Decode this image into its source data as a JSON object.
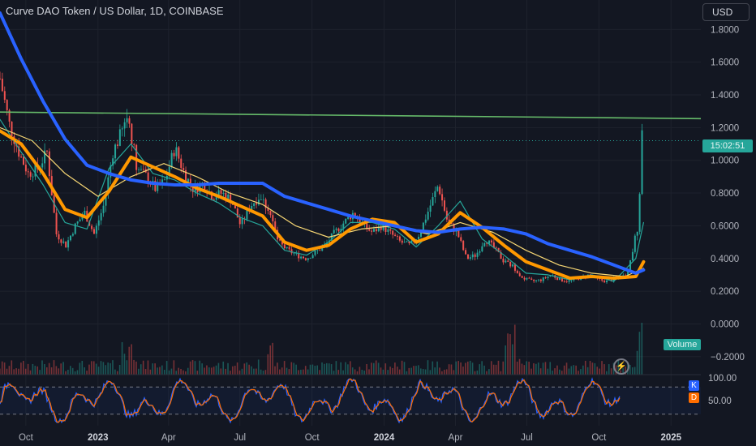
{
  "header": {
    "title": "Curve DAO Token / US Dollar, 1D, COINBASE",
    "currency": "USD"
  },
  "price_tag": "15:02:51",
  "volume_tag": "Volume",
  "indicator": {
    "k": "K",
    "d": "D"
  },
  "colors": {
    "background": "#131722",
    "ma_blue": "#2962ff",
    "ma_orange": "#ff9800",
    "ma_yellow": "#f7d774",
    "ma_teal": "#26a69a",
    "resistance": "#66bb6a",
    "candle_up": "#26a69a",
    "candle_down": "#ef5350",
    "stoch_k": "#2962ff",
    "stoch_d": "#ff6d00"
  },
  "chart_data": {
    "type": "line",
    "title": "Curve DAO Token / US Dollar, 1D, COINBASE",
    "xlabel": "",
    "ylabel": "",
    "x_tick_labels": [
      "Oct",
      "2023",
      "Apr",
      "Jul",
      "Oct",
      "2024",
      "Apr",
      "Jul",
      "Oct",
      "2025"
    ],
    "x_tick_dates": [
      "2022-10-01",
      "2023-01-01",
      "2023-04-01",
      "2023-07-01",
      "2023-10-01",
      "2024-01-01",
      "2024-04-01",
      "2024-07-01",
      "2024-10-01",
      "2025-01-01"
    ],
    "y_tick_labels": [
      "1.8000",
      "1.6000",
      "1.4000",
      "1.2000",
      "1.0000",
      "0.8000",
      "0.6000",
      "0.4000",
      "0.2000",
      "0.0000",
      "−0.2000"
    ],
    "y_ticks": [
      1.8,
      1.6,
      1.4,
      1.2,
      1.0,
      0.8,
      0.6,
      0.4,
      0.2,
      0.0,
      -0.2
    ],
    "ylim": [
      -0.31,
      1.98
    ],
    "xlim": [
      "2022-08-29",
      "2025-02-08"
    ],
    "grid": true,
    "legend": "none",
    "resistance_line": {
      "start": [
        "2022-08-29",
        1.295
      ],
      "end": [
        "2025-02-08",
        1.255
      ]
    },
    "series": [
      {
        "color": "#2962ff",
        "x": [
          "2022-08-29",
          "2022-09-25",
          "2022-10-23",
          "2022-11-20",
          "2022-12-18",
          "2023-01-15",
          "2023-02-12",
          "2023-03-12",
          "2023-04-09",
          "2023-05-07",
          "2023-06-04",
          "2023-07-02",
          "2023-07-30",
          "2023-08-27",
          "2023-09-24",
          "2023-10-22",
          "2023-11-19",
          "2023-12-17",
          "2024-01-14",
          "2024-02-11",
          "2024-03-10",
          "2024-04-07",
          "2024-05-05",
          "2024-06-02",
          "2024-06-30",
          "2024-07-28",
          "2024-08-25",
          "2024-09-22",
          "2024-10-20",
          "2024-11-17",
          "2024-11-27"
        ],
        "values": [
          1.9,
          1.62,
          1.36,
          1.13,
          0.97,
          0.92,
          0.88,
          0.86,
          0.85,
          0.85,
          0.86,
          0.86,
          0.86,
          0.78,
          0.74,
          0.7,
          0.66,
          0.63,
          0.6,
          0.57,
          0.56,
          0.58,
          0.59,
          0.58,
          0.55,
          0.49,
          0.45,
          0.41,
          0.36,
          0.31,
          0.33
        ]
      },
      {
        "color": "#ff9800",
        "x": [
          "2022-08-29",
          "2022-09-25",
          "2022-10-23",
          "2022-11-20",
          "2022-12-18",
          "2023-01-15",
          "2023-02-12",
          "2023-03-12",
          "2023-04-09",
          "2023-05-07",
          "2023-06-04",
          "2023-07-02",
          "2023-07-30",
          "2023-08-27",
          "2023-09-24",
          "2023-10-22",
          "2023-11-19",
          "2023-12-17",
          "2024-01-14",
          "2024-02-11",
          "2024-03-10",
          "2024-04-07",
          "2024-05-05",
          "2024-06-02",
          "2024-06-30",
          "2024-07-28",
          "2024-08-25",
          "2024-09-22",
          "2024-10-20",
          "2024-11-17",
          "2024-11-27"
        ],
        "values": [
          1.18,
          1.1,
          0.92,
          0.7,
          0.65,
          0.81,
          1.02,
          0.96,
          0.9,
          0.83,
          0.78,
          0.72,
          0.66,
          0.5,
          0.45,
          0.48,
          0.58,
          0.64,
          0.62,
          0.5,
          0.55,
          0.68,
          0.59,
          0.48,
          0.38,
          0.33,
          0.28,
          0.29,
          0.28,
          0.29,
          0.38
        ]
      },
      {
        "color": "#f7d774",
        "x": [
          "2022-08-29",
          "2022-10-09",
          "2022-11-20",
          "2023-01-01",
          "2023-02-12",
          "2023-03-26",
          "2023-05-07",
          "2023-06-18",
          "2023-07-30",
          "2023-09-10",
          "2023-10-22",
          "2023-12-03",
          "2024-01-14",
          "2024-02-25",
          "2024-04-07",
          "2024-05-19",
          "2024-06-30",
          "2024-08-11",
          "2024-09-22",
          "2024-11-03",
          "2024-11-27"
        ],
        "values": [
          1.2,
          1.12,
          0.92,
          0.78,
          0.9,
          0.98,
          0.9,
          0.8,
          0.73,
          0.6,
          0.53,
          0.58,
          0.6,
          0.55,
          0.62,
          0.56,
          0.45,
          0.36,
          0.31,
          0.29,
          0.34
        ]
      },
      {
        "color": "#26a69a",
        "x": [
          "2022-08-29",
          "2022-09-25",
          "2022-10-23",
          "2022-11-20",
          "2022-12-18",
          "2023-01-15",
          "2023-02-12",
          "2023-03-12",
          "2023-04-09",
          "2023-05-07",
          "2023-06-04",
          "2023-07-02",
          "2023-07-30",
          "2023-08-27",
          "2023-09-24",
          "2023-10-22",
          "2023-11-19",
          "2023-12-17",
          "2024-01-14",
          "2024-02-11",
          "2024-03-10",
          "2024-04-07",
          "2024-05-05",
          "2024-06-02",
          "2024-06-30",
          "2024-07-28",
          "2024-08-25",
          "2024-09-22",
          "2024-10-20",
          "2024-11-17",
          "2024-11-27"
        ],
        "values": [
          1.25,
          1.05,
          0.85,
          0.62,
          0.58,
          0.95,
          1.1,
          0.92,
          0.88,
          0.8,
          0.74,
          0.65,
          0.6,
          0.45,
          0.42,
          0.5,
          0.62,
          0.62,
          0.58,
          0.47,
          0.6,
          0.75,
          0.52,
          0.42,
          0.31,
          0.3,
          0.27,
          0.3,
          0.26,
          0.4,
          0.62
        ]
      }
    ],
    "price_path": {
      "x": [
        "2022-08-29",
        "2022-09-10",
        "2022-09-22",
        "2022-10-04",
        "2022-10-16",
        "2022-10-28",
        "2022-11-09",
        "2022-11-21",
        "2022-12-03",
        "2022-12-15",
        "2022-12-27",
        "2023-01-08",
        "2023-01-20",
        "2023-02-01",
        "2023-02-08",
        "2023-02-20",
        "2023-03-04",
        "2023-03-16",
        "2023-03-28",
        "2023-04-09",
        "2023-04-21",
        "2023-05-03",
        "2023-05-15",
        "2023-05-27",
        "2023-06-08",
        "2023-06-20",
        "2023-07-02",
        "2023-07-14",
        "2023-07-26",
        "2023-08-07",
        "2023-08-19",
        "2023-08-31",
        "2023-09-12",
        "2023-09-24",
        "2023-10-06",
        "2023-10-18",
        "2023-10-30",
        "2023-11-11",
        "2023-11-23",
        "2023-12-05",
        "2023-12-17",
        "2023-12-29",
        "2024-01-10",
        "2024-01-22",
        "2024-02-03",
        "2024-02-15",
        "2024-02-27",
        "2024-03-10",
        "2024-03-22",
        "2024-04-03",
        "2024-04-15",
        "2024-04-27",
        "2024-05-09",
        "2024-05-21",
        "2024-06-02",
        "2024-06-14",
        "2024-06-26",
        "2024-07-08",
        "2024-07-20",
        "2024-08-01",
        "2024-08-13",
        "2024-08-25",
        "2024-09-06",
        "2024-09-18",
        "2024-09-30",
        "2024-10-12",
        "2024-10-24",
        "2024-11-05",
        "2024-11-12",
        "2024-11-17",
        "2024-11-21",
        "2024-11-24",
        "2024-11-27"
      ],
      "values": [
        1.5,
        1.22,
        1.05,
        0.92,
        0.95,
        1.05,
        0.55,
        0.48,
        0.6,
        0.68,
        0.55,
        0.72,
        1.05,
        1.18,
        1.28,
        0.95,
        0.9,
        0.82,
        0.88,
        1.08,
        0.92,
        0.82,
        0.86,
        0.78,
        0.8,
        0.76,
        0.6,
        0.72,
        0.78,
        0.7,
        0.5,
        0.45,
        0.42,
        0.4,
        0.44,
        0.48,
        0.56,
        0.62,
        0.68,
        0.6,
        0.56,
        0.6,
        0.55,
        0.5,
        0.48,
        0.55,
        0.7,
        0.85,
        0.62,
        0.56,
        0.4,
        0.42,
        0.52,
        0.46,
        0.38,
        0.35,
        0.28,
        0.26,
        0.27,
        0.3,
        0.27,
        0.26,
        0.28,
        0.3,
        0.27,
        0.26,
        0.28,
        0.3,
        0.42,
        0.55,
        0.62,
        1.2,
        1.12
      ]
    },
    "volume": {
      "description_hidden": true,
      "peak_dates": [
        "2023-02-08",
        "2023-08-05",
        "2024-06-12",
        "2024-11-24"
      ]
    },
    "stochastic": {
      "ylim": [
        0,
        100
      ],
      "y_tick_labels": [
        "100.00",
        "50.00"
      ],
      "y_ticks": [
        100,
        50
      ],
      "levels": [
        80,
        20
      ]
    }
  }
}
